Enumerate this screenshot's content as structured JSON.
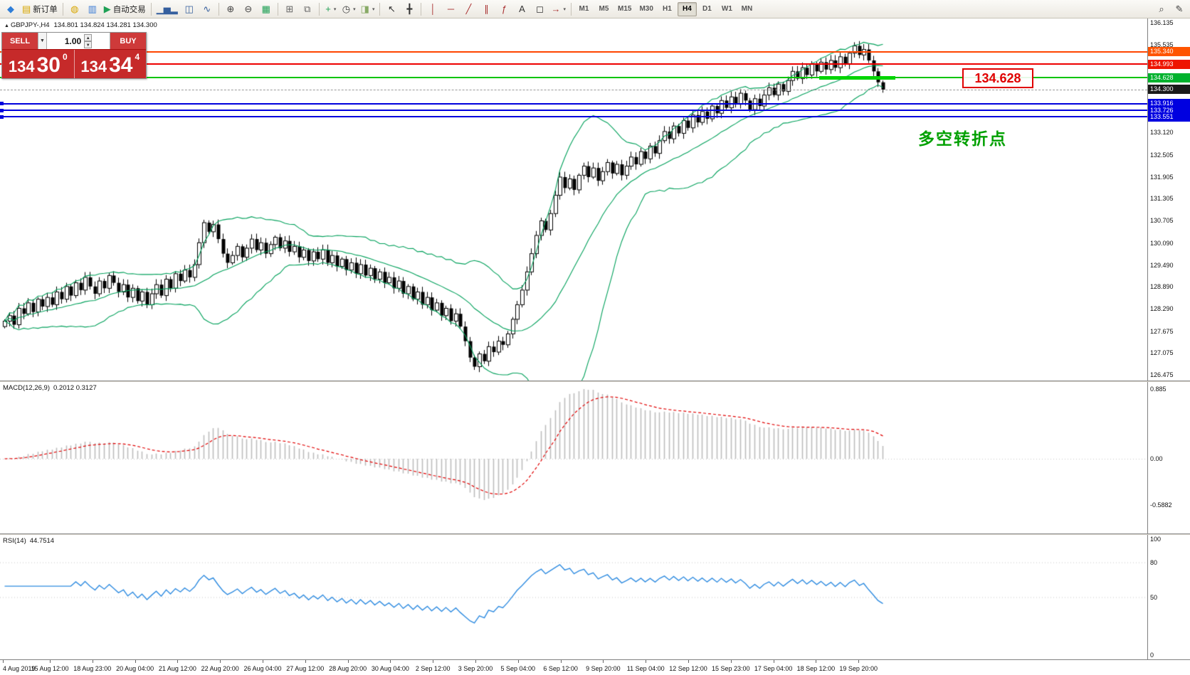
{
  "toolbar": {
    "new_order_label": "新订单",
    "auto_trading_label": "自动交易",
    "timeframes": {
      "options": [
        "M1",
        "M5",
        "M15",
        "M30",
        "H1",
        "H4",
        "D1",
        "W1",
        "MN"
      ],
      "active": "H4"
    },
    "items": [
      {
        "name": "app-button",
        "icon": "mt-logo-icon",
        "glyph": "◆",
        "fg": "#2f7ed8"
      },
      {
        "name": "new-order-button",
        "icon": "new-order-icon",
        "glyph": "▤",
        "fg": "#d7a600",
        "label": "新订单"
      },
      {
        "sep": true
      },
      {
        "name": "market-watch-button",
        "icon": "market-watch-icon",
        "glyph": "◍",
        "fg": "#d7a600"
      },
      {
        "name": "data-window-button",
        "icon": "data-window-icon",
        "glyph": "▥",
        "fg": "#3a7bd5"
      },
      {
        "name": "auto-trading-button",
        "icon": "play-icon",
        "glyph": "▶",
        "fg": "#1fa055",
        "label": "自动交易"
      },
      {
        "sep": true
      },
      {
        "name": "bar-chart-button",
        "icon": "bar-chart-icon",
        "glyph": "▁▅▂",
        "fg": "#355f9e"
      },
      {
        "name": "candlestick-button",
        "icon": "candlestick-icon",
        "glyph": "◫",
        "fg": "#355f9e"
      },
      {
        "name": "line-chart-button",
        "icon": "line-chart-icon",
        "glyph": "∿",
        "fg": "#355f9e"
      },
      {
        "sep": true
      },
      {
        "name": "zoom-in-button",
        "icon": "zoom-in-icon",
        "glyph": "⊕",
        "fg": "#444444"
      },
      {
        "name": "zoom-out-button",
        "icon": "zoom-out-icon",
        "glyph": "⊖",
        "fg": "#444444"
      },
      {
        "name": "grid-button",
        "icon": "grid-icon",
        "glyph": "▦",
        "fg": "#1fa055"
      },
      {
        "sep": true
      },
      {
        "name": "tile-windows-button",
        "icon": "tile-windows-icon",
        "glyph": "⊞",
        "fg": "#666666"
      },
      {
        "name": "cascade-windows-button",
        "icon": "cascade-windows-icon",
        "glyph": "⧉",
        "fg": "#666666"
      },
      {
        "sep": true
      },
      {
        "name": "indicators-button",
        "icon": "indicators-icon",
        "glyph": "+",
        "fg": "#1fa055",
        "caret": true
      },
      {
        "name": "periods-button",
        "icon": "clock-icon",
        "glyph": "◷",
        "fg": "#444444",
        "caret": true
      },
      {
        "name": "templates-button",
        "icon": "template-icon",
        "glyph": "◨",
        "fg": "#88aa66",
        "caret": true
      },
      {
        "sep": true
      },
      {
        "name": "cursor-button",
        "icon": "cursor-icon",
        "glyph": "↖",
        "fg": "#333333"
      },
      {
        "name": "crosshair-button",
        "icon": "crosshair-icon",
        "glyph": "╋",
        "fg": "#333333"
      },
      {
        "sep": true
      },
      {
        "name": "vertical-line-button",
        "icon": "vertical-line-icon",
        "glyph": "│",
        "fg": "#aa3333"
      },
      {
        "name": "horizontal-line-button",
        "icon": "horizontal-line-icon",
        "glyph": "─",
        "fg": "#aa3333"
      },
      {
        "name": "trendline-button",
        "icon": "trendline-icon",
        "glyph": "╱",
        "fg": "#aa3333"
      },
      {
        "name": "channel-button",
        "icon": "channel-icon",
        "glyph": "∥",
        "fg": "#aa3333"
      },
      {
        "name": "fibonacci-button",
        "icon": "fibonacci-icon",
        "glyph": "ƒ",
        "fg": "#aa3333"
      },
      {
        "name": "text-button",
        "icon": "text-icon",
        "glyph": "A",
        "fg": "#333333"
      },
      {
        "name": "shapes-button",
        "icon": "shapes-icon",
        "glyph": "◻",
        "fg": "#333333"
      },
      {
        "name": "arrows-button",
        "icon": "arrow-icon",
        "glyph": "→",
        "fg": "#aa3333",
        "caret": true
      },
      {
        "sep": true
      },
      {
        "timeframes": true
      },
      {
        "spacer": true
      },
      {
        "name": "search-button",
        "icon": "magnifier-icon",
        "glyph": "⌕",
        "fg": "#444444"
      },
      {
        "name": "compose-button",
        "icon": "pencil-icon",
        "glyph": "✎",
        "fg": "#444444"
      }
    ]
  },
  "chart": {
    "symbol_line": {
      "triangle": "▲",
      "symbol": "GBPJPY-,H4",
      "ohlc": "134.801 134.824 134.281 134.300"
    },
    "trade_panel": {
      "sell_label": "SELL",
      "buy_label": "BUY",
      "lot": "1.00",
      "sell_price_prefix": "134",
      "sell_price_main": "30",
      "sell_price_sup": "0",
      "buy_price_prefix": "134",
      "buy_price_main": "34",
      "buy_price_sup": "4"
    },
    "annotation": {
      "text": "多空转折点",
      "color": "#00a000"
    },
    "price_callout": {
      "text": "134.628",
      "color": "#e00000"
    },
    "hlines": [
      {
        "price": 135.34,
        "label": "135.340",
        "line_color": "#ff4500",
        "label_bg": "#ff5400"
      },
      {
        "price": 134.993,
        "label": "134.993",
        "line_color": "#ee0000",
        "label_bg": "#ee1500"
      },
      {
        "price": 134.628,
        "label": "134.628",
        "line_color": "#00c400",
        "label_bg": "#00b22d"
      },
      {
        "price": 134.3,
        "label": "134.300",
        "line_color": "#999999",
        "label_bg": "#1a1a1a",
        "dashed": true
      },
      {
        "price": 133.916,
        "label": "133.916",
        "line_color": "#0000dd",
        "label_bg": "#0000e0",
        "handle": true
      },
      {
        "price": 133.726,
        "label": "133.726",
        "line_color": "#0000dd",
        "label_bg": "#0000e0",
        "handle": true
      },
      {
        "price": 133.551,
        "label": "133.551",
        "line_color": "#0000dd",
        "label_bg": "#0000e0",
        "handle": true
      }
    ],
    "highlight_segment": {
      "price": 134.628,
      "from_index": 172,
      "to_index": 188,
      "color": "#00d500"
    },
    "axis_ticks": [
      136.135,
      135.535,
      133.12,
      132.505,
      131.905,
      131.305,
      130.705,
      130.09,
      129.49,
      128.89,
      128.29,
      127.675,
      127.075,
      126.475
    ]
  },
  "macd_panel": {
    "label": "MACD(12,26,9)",
    "values": "0.2012 0.3127",
    "axis": [
      "0.885",
      "0.00",
      "-0.5882"
    ],
    "axis_values": [
      0.885,
      0,
      -0.5882
    ]
  },
  "rsi_panel": {
    "label": "RSI(14)",
    "value": "44.7514",
    "axis": [
      "100",
      "80",
      "50",
      "0"
    ],
    "axis_values": [
      100,
      80,
      50,
      0
    ]
  },
  "time_axis": {
    "labels": [
      "4 Aug 2019",
      "15 Aug 12:00",
      "18 Aug 23:00",
      "20 Aug 04:00",
      "21 Aug 12:00",
      "22 Aug 20:00",
      "26 Aug 04:00",
      "27 Aug 12:00",
      "28 Aug 20:00",
      "30 Aug 04:00",
      "2 Sep 12:00",
      "3 Sep 20:00",
      "5 Sep 04:00",
      "6 Sep 12:00",
      "9 Sep 20:00",
      "11 Sep 04:00",
      "12 Sep 12:00",
      "15 Sep 23:00",
      "17 Sep 04:00",
      "18 Sep 12:00",
      "19 Sep 20:00"
    ]
  },
  "chart_data": {
    "type": "candlestick",
    "symbol": "GBPJPY-",
    "timeframe": "H4",
    "title": "GBPJPY-,H4",
    "ohlc_header": {
      "open": 134.801,
      "high": 134.824,
      "low": 134.281,
      "close": 134.3
    },
    "price_range": [
      126.32,
      136.25
    ],
    "visible_time_range": [
      "4 Aug 2019",
      "19 Sep 20:00"
    ],
    "opens_rule": "previous_close",
    "closes": [
      127.95,
      128.1,
      127.85,
      128.3,
      128.15,
      128.45,
      128.2,
      128.55,
      128.35,
      128.6,
      128.4,
      128.75,
      128.55,
      128.9,
      128.65,
      129.0,
      128.8,
      129.15,
      128.9,
      128.7,
      129.05,
      128.85,
      129.2,
      129.0,
      128.75,
      128.95,
      128.6,
      128.85,
      128.5,
      128.75,
      128.4,
      128.7,
      128.95,
      128.65,
      129.1,
      128.85,
      129.25,
      129.05,
      129.35,
      129.15,
      129.5,
      130.1,
      130.65,
      130.4,
      130.6,
      130.2,
      129.8,
      129.55,
      129.75,
      130.0,
      129.7,
      129.95,
      130.2,
      129.9,
      130.1,
      129.8,
      130.05,
      130.25,
      129.95,
      130.15,
      129.85,
      130.0,
      129.7,
      129.9,
      129.6,
      129.85,
      129.65,
      129.9,
      129.55,
      129.75,
      129.45,
      129.65,
      129.35,
      129.55,
      129.25,
      129.5,
      129.2,
      129.4,
      129.1,
      129.3,
      129.0,
      129.15,
      128.85,
      129.05,
      128.7,
      128.9,
      128.55,
      128.75,
      128.4,
      128.6,
      128.25,
      128.45,
      128.1,
      128.3,
      127.95,
      128.15,
      127.8,
      127.4,
      126.95,
      126.7,
      127.05,
      126.85,
      127.25,
      127.1,
      127.4,
      127.3,
      127.6,
      128.0,
      128.4,
      128.8,
      129.3,
      129.8,
      130.3,
      130.7,
      130.45,
      130.9,
      131.4,
      131.9,
      131.6,
      131.85,
      131.55,
      131.95,
      132.2,
      131.9,
      132.15,
      131.8,
      132.05,
      132.3,
      132.0,
      132.25,
      131.95,
      132.2,
      132.45,
      132.25,
      132.6,
      132.4,
      132.75,
      132.55,
      132.9,
      133.15,
      132.95,
      133.3,
      133.1,
      133.45,
      133.25,
      133.6,
      133.4,
      133.7,
      133.5,
      133.85,
      133.65,
      134.0,
      133.8,
      134.1,
      133.9,
      134.2,
      134.0,
      133.75,
      134.05,
      133.85,
      134.15,
      134.35,
      134.15,
      134.45,
      134.25,
      134.55,
      134.8,
      134.6,
      134.9,
      134.7,
      135.0,
      134.8,
      135.05,
      134.85,
      135.1,
      134.9,
      135.2,
      135.0,
      135.3,
      135.5,
      135.25,
      135.4,
      135.1,
      134.8,
      134.5,
      134.3
    ],
    "indicators": [
      {
        "name": "Bollinger Bands",
        "period": 20,
        "deviation": 2,
        "color": "#00a05a"
      },
      {
        "name": "MACD",
        "fast": 12,
        "slow": 26,
        "signal": 9,
        "macd_value": 0.2012,
        "signal_value": 0.3127,
        "histogram_color": "#bcbcbc",
        "signal_color": "#e00000"
      },
      {
        "name": "RSI",
        "period": 14,
        "value": 44.7514,
        "color": "#2e8be0"
      }
    ],
    "levels": [
      135.34,
      134.993,
      134.628,
      134.3,
      133.916,
      133.726,
      133.551
    ],
    "annotations": [
      "多空转折点",
      "134.628"
    ]
  }
}
